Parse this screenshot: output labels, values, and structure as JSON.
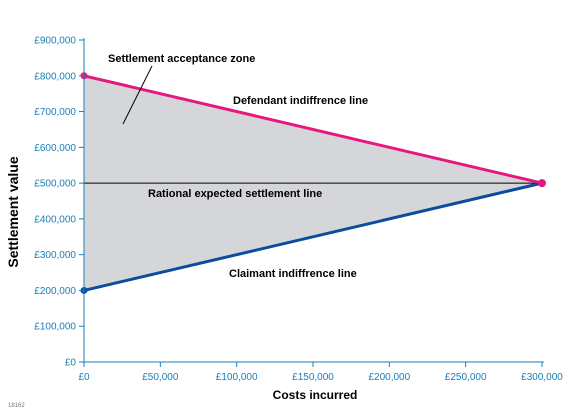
{
  "chart_data": {
    "type": "area",
    "x": [
      0,
      300000
    ],
    "series": [
      {
        "name": "Defendant indiffrence line",
        "values": [
          800000,
          500000
        ],
        "color": "#e6177e"
      },
      {
        "name": "Claimant indiffrence line",
        "values": [
          200000,
          500000
        ],
        "color": "#0d4c9c"
      },
      {
        "name": "Rational expected settlement line",
        "values": [
          500000,
          500000
        ],
        "color": "#000000"
      }
    ],
    "fill_color": "#d4d6d9",
    "xlabel": "Costs incurred",
    "ylabel": "Settlement value",
    "xlim": [
      0,
      300000
    ],
    "ylim": [
      0,
      900000
    ],
    "x_ticks": [
      0,
      50000,
      100000,
      150000,
      200000,
      250000,
      300000
    ],
    "y_ticks": [
      0,
      100000,
      200000,
      300000,
      400000,
      500000,
      600000,
      700000,
      800000,
      900000
    ],
    "x_tick_labels": [
      "£0",
      "£50,000",
      "£100,000",
      "£150,000",
      "£200,000",
      "£250,000",
      "£300,000"
    ],
    "y_tick_labels": [
      "£0",
      "£100,000",
      "£200,000",
      "£300,000",
      "£400,000",
      "£500,000",
      "£600,000",
      "£700,000",
      "£800,000",
      "£900,000"
    ],
    "annotations": {
      "zone": "Settlement acceptance zone",
      "defendant": "Defendant indiffrence line",
      "rational": "Rational expected settlement line",
      "claimant": "Claimant indiffrence line"
    },
    "axis_color": "#1a7fb5",
    "grid": false,
    "figure_number": "18162"
  }
}
